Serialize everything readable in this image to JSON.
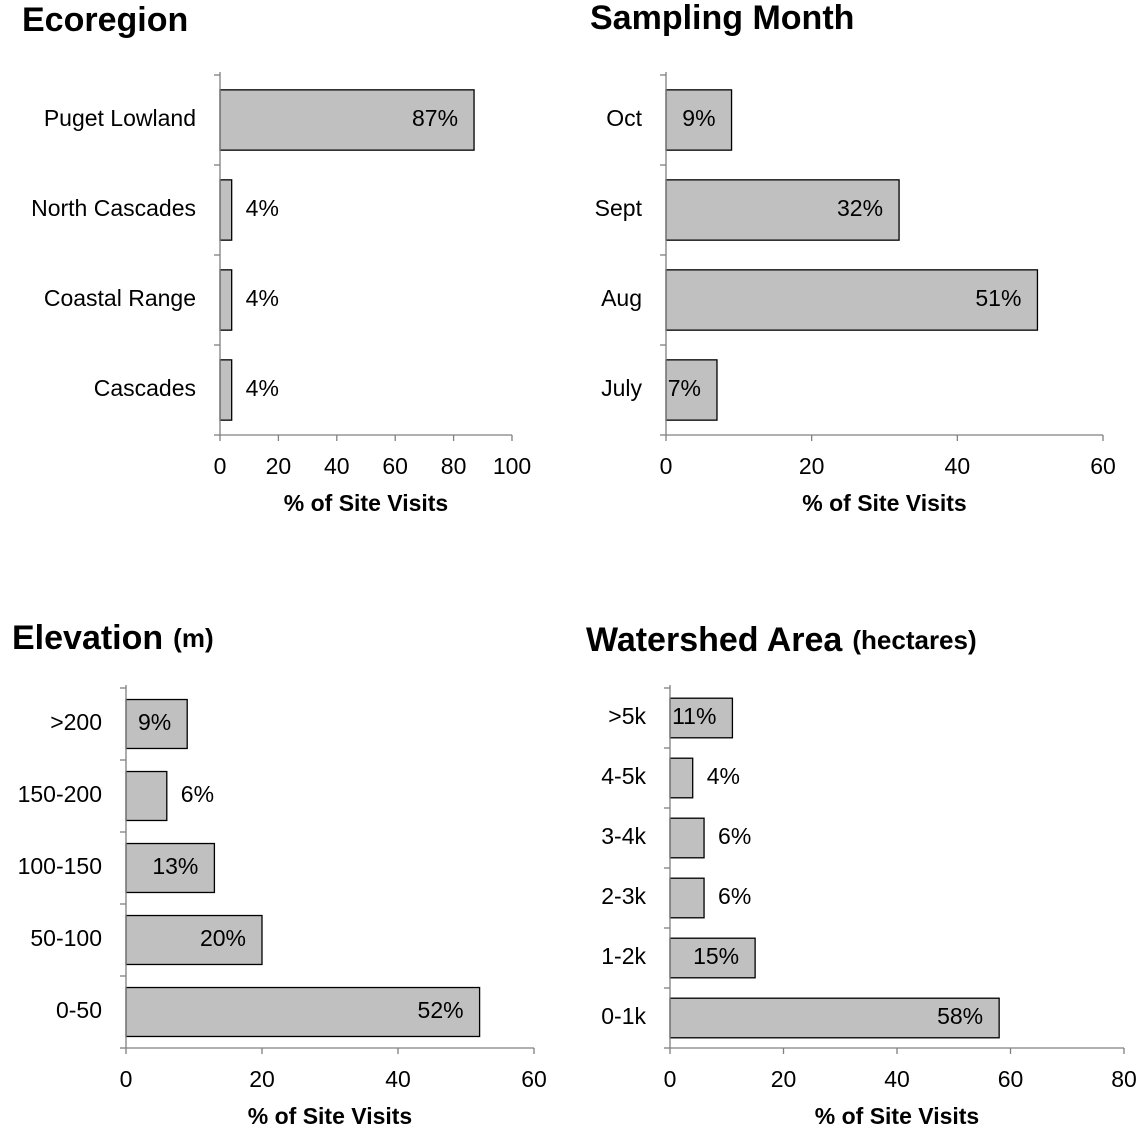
{
  "chart_data": [
    {
      "type": "bar",
      "title": "Ecoregion",
      "x_label": "% of Site Visits",
      "categories": [
        "Puget Lowland",
        "North Cascades",
        "Coastal Range",
        "Cascades"
      ],
      "values": [
        87,
        4,
        4,
        4
      ],
      "value_labels": [
        "87%",
        "4%",
        "4%",
        "4%"
      ],
      "color": "#c0c0c0",
      "xlim": [
        0,
        100
      ],
      "xticks": [
        0,
        20,
        40,
        60,
        80,
        100
      ]
    },
    {
      "type": "bar",
      "title": "Sampling Month",
      "x_label": "% of Site Visits",
      "categories": [
        "Oct",
        "Sept",
        "Aug",
        "July"
      ],
      "values": [
        9,
        32,
        51,
        7
      ],
      "value_labels": [
        "9%",
        "32%",
        "51%",
        "7%"
      ],
      "color": "#c0c0c0",
      "xlim": [
        0,
        60
      ],
      "xticks": [
        0,
        20,
        40,
        60
      ]
    },
    {
      "type": "bar",
      "title": "Elevation",
      "title_unit": "(m)",
      "x_label": "% of Site Visits",
      "categories": [
        ">200",
        "150-200",
        "100-150",
        "50-100",
        "0-50"
      ],
      "values": [
        9,
        6,
        13,
        20,
        52
      ],
      "value_labels": [
        "9%",
        "6%",
        "13%",
        "20%",
        "52%"
      ],
      "color": "#c0c0c0",
      "xlim": [
        0,
        60
      ],
      "xticks": [
        0,
        20,
        40,
        60
      ]
    },
    {
      "type": "bar",
      "title": "Watershed Area",
      "title_unit": "(hectares)",
      "x_label": "% of Site Visits",
      "categories": [
        ">5k",
        "4-5k",
        "3-4k",
        "2-3k",
        "1-2k",
        "0-1k"
      ],
      "values": [
        11,
        4,
        6,
        6,
        15,
        58
      ],
      "value_labels": [
        "11%",
        "4%",
        "6%",
        "6%",
        "15%",
        "58%"
      ],
      "color": "#c0c0c0",
      "xlim": [
        0,
        80
      ],
      "xticks": [
        0,
        20,
        40,
        60,
        80
      ]
    }
  ]
}
